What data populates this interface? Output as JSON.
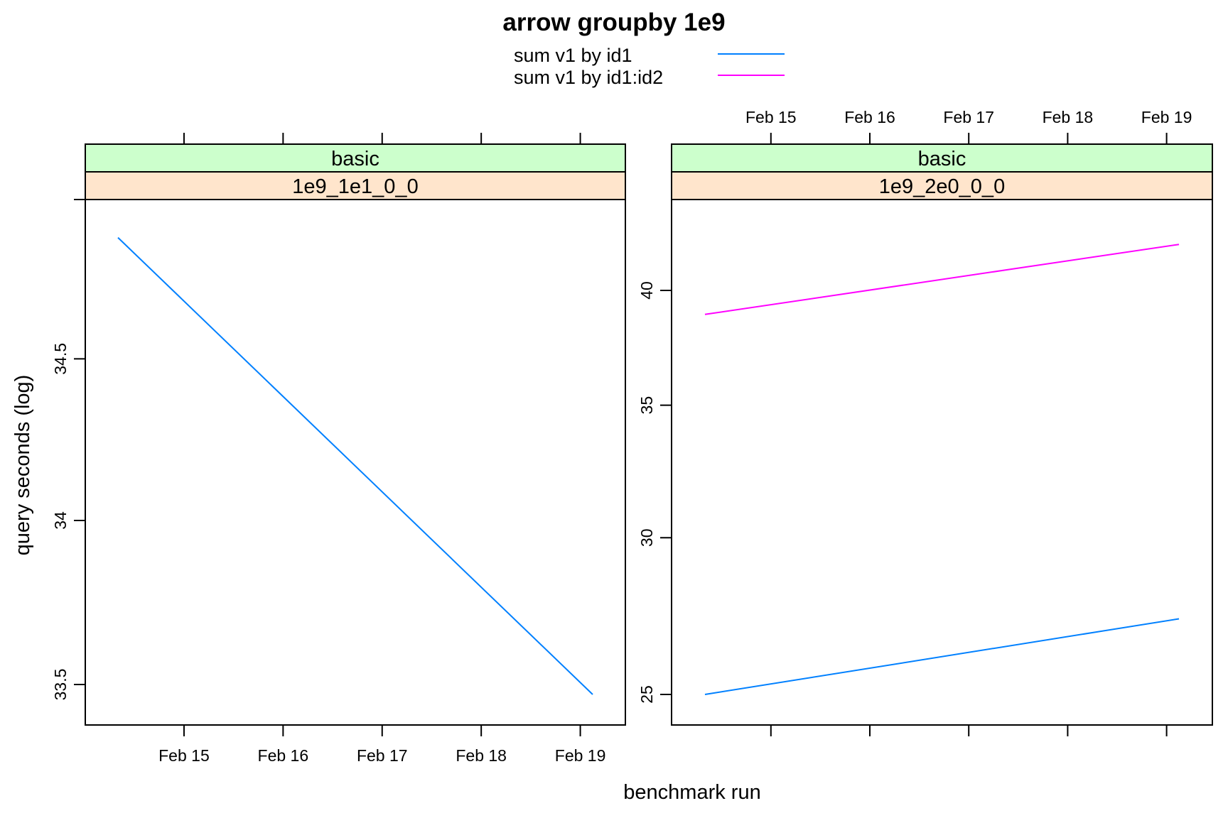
{
  "chart_data": {
    "type": "line",
    "title": "arrow groupby 1e9",
    "xlabel": "benchmark run",
    "ylabel": "query seconds (log)",
    "y_scale": "log",
    "grid": false,
    "legend_position": "top",
    "x_tick_labels": [
      "Feb 15",
      "Feb 16",
      "Feb 17",
      "Feb 18",
      "Feb 19"
    ],
    "series_legend": [
      {
        "name": "sum v1 by id1",
        "color": "#0080ff"
      },
      {
        "name": "sum v1 by id1:id2",
        "color": "#ff00ff"
      }
    ],
    "panels": [
      {
        "strip_top": "basic",
        "strip_bottom": "1e9_1e1_0_0",
        "y_ticks": [
          "33.5",
          "34",
          "34.5"
        ],
        "series": [
          {
            "name": "sum v1 by id1",
            "x": [
              "2020-02-14T08:00",
              "2020-02-19T03:00"
            ],
            "y": [
              34.88,
              33.47
            ]
          }
        ]
      },
      {
        "strip_top": "basic",
        "strip_bottom": "1e9_2e0_0_0",
        "y_ticks": [
          "25",
          "30",
          "35",
          "40"
        ],
        "series": [
          {
            "name": "sum v1 by id1",
            "x": [
              "2020-02-14T08:00",
              "2020-02-19T03:00"
            ],
            "y": [
              25.0,
              27.3
            ]
          },
          {
            "name": "sum v1 by id1:id2",
            "x": [
              "2020-02-14T08:00",
              "2020-02-19T03:00"
            ],
            "y": [
              38.9,
              42.2
            ]
          }
        ]
      }
    ]
  },
  "colors": {
    "strip_top_bg": "#ccffcc",
    "strip_bottom_bg": "#ffe5cc"
  }
}
